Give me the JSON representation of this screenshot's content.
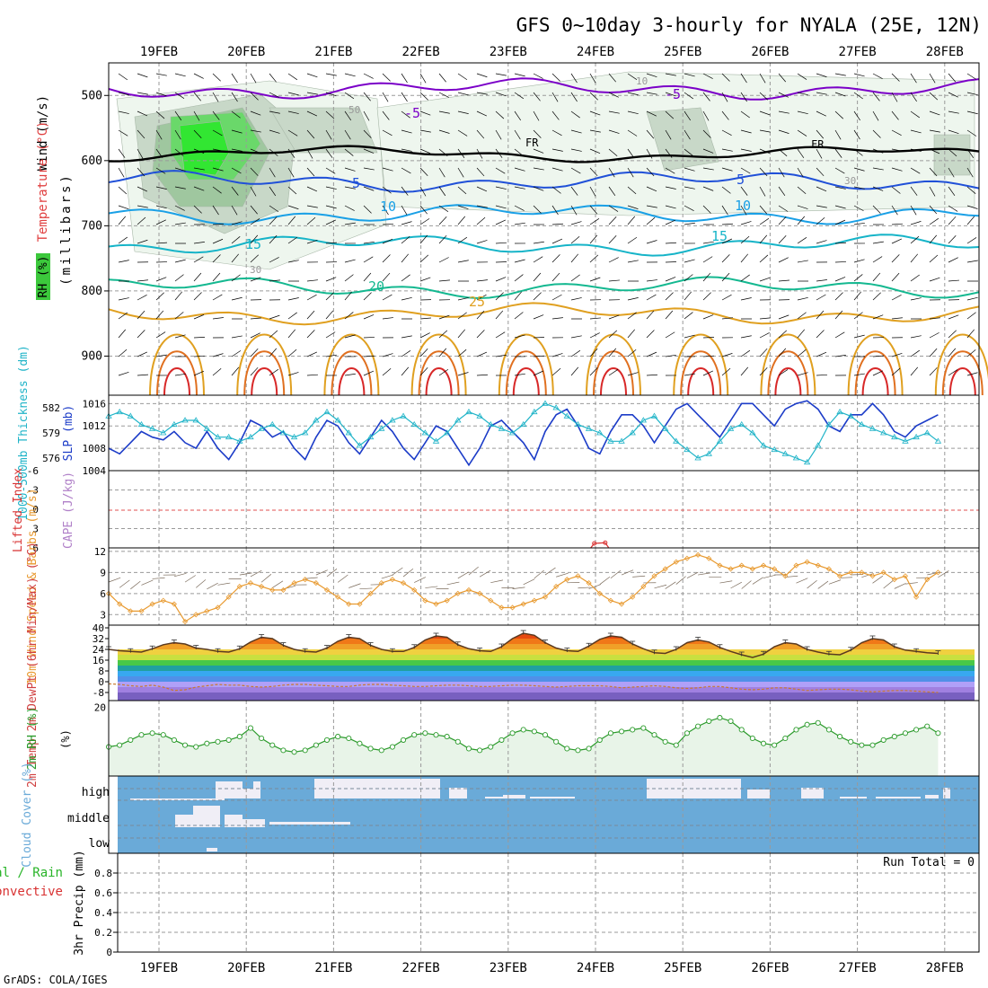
{
  "title": "GFS 0~10day 3-hourly for NYALA (25E, 12N)",
  "credit": "GrADS: COLA/IGES",
  "colors": {
    "wind_barb": "#000000",
    "fr": "#000000",
    "t_neg": "#7b00c8",
    "t5": "#2050d8",
    "t10": "#1aa0e6",
    "t15": "#16b4c8",
    "t20": "#14b890",
    "t25": "#e0a020",
    "t30": "#e07020",
    "t35": "#d82828",
    "rh": "#3cc83c",
    "slp": "#1c3cc8",
    "thickness": "#20b4c8",
    "lifted": "#d83232",
    "cape": "#b080c8",
    "wind10": "#e89a30",
    "rh2m": "#2a9a2a",
    "rh2m_fill": "#e8f4e8",
    "cloud": "#6aaad8",
    "cloud_clear": "#f0eef6",
    "precip": "#28b428"
  },
  "chart_data": [
    {
      "panel": "upper-air",
      "type": "heatmap",
      "title": "",
      "ylabel_parts": [
        "Wind (m/s)",
        "Temperature (°C)",
        "(millibars)"
      ],
      "legend": "RH (%)",
      "x": [
        "19FEB",
        "20FEB",
        "21FEB",
        "22FEB",
        "23FEB",
        "24FEB",
        "25FEB",
        "26FEB",
        "27FEB",
        "28FEB"
      ],
      "ylim": [
        960,
        450
      ],
      "yticks": [
        500,
        600,
        700,
        800,
        900
      ],
      "isotherm_labels": [
        "-5",
        "5",
        "10",
        "15",
        "20",
        "25",
        "FR"
      ],
      "rh_labels": [
        "30",
        "50",
        "10"
      ],
      "isotherms": [
        {
          "label": "-5",
          "pressure_mb": 490
        },
        {
          "label": "FR",
          "pressure_mb": 590
        },
        {
          "label": "5",
          "pressure_mb": 632
        },
        {
          "label": "10",
          "pressure_mb": 682
        },
        {
          "label": "15",
          "pressure_mb": 730
        },
        {
          "label": "20",
          "pressure_mb": 795
        },
        {
          "label": "25",
          "pressure_mb": 835
        }
      ]
    },
    {
      "panel": "slp-thickness",
      "type": "line",
      "ylabel_left": "1000-500mb Thickness (dm)",
      "ylabel_right": "SLP (mb)",
      "yticks_left": [
        576,
        579,
        582
      ],
      "yticks_right": [
        1004,
        1008,
        1012,
        1016
      ],
      "ylim_right": [
        1004,
        1017.5
      ],
      "ylim_left": [
        574.5,
        583.5
      ],
      "series": [
        {
          "name": "SLP",
          "values": [
            1008.0,
            1007.0,
            1009.0,
            1011.0,
            1010.0,
            1009.5,
            1011.0,
            1009.0,
            1008.0,
            1011.0,
            1008.0,
            1006.0,
            1009.0,
            1013.0,
            1012.0,
            1010.0,
            1011.0,
            1008.0,
            1006.0,
            1010.0,
            1013.0,
            1012.0,
            1009.0,
            1007.0,
            1010.0,
            1013.0,
            1011.0,
            1008.0,
            1006.0,
            1009.0,
            1012.0,
            1011.0,
            1008.0,
            1005.0,
            1008.0,
            1012.0,
            1013.0,
            1011.0,
            1009.0,
            1006.0,
            1011.0,
            1014.0,
            1015.0,
            1012.0,
            1008.0,
            1007.0,
            1011.0,
            1014.0,
            1014.0,
            1012.0,
            1009.0,
            1012.0,
            1015.0,
            1016.0,
            1014.0,
            1012.0,
            1010.0,
            1013.0,
            1016.0,
            1016.0,
            1014.0,
            1012.0,
            1015.0,
            1016.0,
            1016.5,
            1015.0,
            1012.0,
            1011.0,
            1014.0,
            1014.0,
            1016.0,
            1014.0,
            1011.0,
            1010.0,
            1012.0,
            1013.0,
            1014.0
          ]
        },
        {
          "name": "Thickness",
          "values": [
            581.0,
            581.5,
            581.0,
            580.0,
            579.5,
            579.0,
            580.0,
            580.5,
            580.5,
            579.5,
            578.5,
            578.5,
            578.0,
            578.5,
            579.5,
            580.0,
            579.0,
            578.5,
            579.0,
            580.5,
            581.5,
            580.5,
            579.0,
            577.5,
            578.5,
            579.5,
            580.5,
            581.0,
            580.0,
            579.0,
            578.0,
            579.0,
            580.5,
            581.5,
            581.0,
            580.0,
            579.5,
            579.0,
            580.0,
            581.5,
            582.5,
            582.0,
            581.0,
            580.0,
            579.5,
            579.0,
            578.0,
            578.0,
            579.0,
            580.5,
            581.0,
            579.5,
            578.0,
            577.0,
            576.0,
            576.5,
            578.0,
            579.5,
            580.0,
            579.0,
            577.5,
            577.0,
            576.5,
            576.0,
            575.5,
            577.5,
            580.0,
            581.5,
            581.0,
            580.0,
            579.5,
            579.0,
            578.5,
            578.0,
            578.5,
            579.0,
            578.0
          ]
        }
      ]
    },
    {
      "panel": "lifted-cape",
      "type": "line",
      "ylabel_left": "Lifted Index",
      "ylabel_right": "CAPE (J/kg)",
      "yticks": [
        "-6",
        "-3",
        "0",
        "3",
        "6"
      ],
      "ylim": [
        -6,
        6
      ],
      "series": [
        {
          "name": "CAPE",
          "values": [
            {
              "x": 44.5,
              "y": 5.3
            },
            {
              "x": 45.5,
              "y": 5.2
            }
          ]
        }
      ]
    },
    {
      "panel": "wind10m",
      "type": "line",
      "ylabel": "10m Wind Speed & Barbs (m/s)",
      "yticks": [
        3,
        6,
        9,
        12
      ],
      "ylim": [
        1.5,
        12.5
      ],
      "series": [
        {
          "name": "10m Wind Speed",
          "values": [
            6.0,
            4.5,
            3.5,
            3.5,
            4.5,
            5.0,
            4.5,
            2.0,
            3.0,
            3.5,
            4.0,
            5.5,
            7.0,
            7.5,
            7.0,
            6.5,
            6.5,
            7.5,
            8.0,
            7.5,
            6.5,
            5.5,
            4.5,
            4.5,
            6.0,
            7.5,
            8.0,
            7.5,
            6.5,
            5.0,
            4.5,
            5.0,
            6.0,
            6.5,
            6.0,
            5.0,
            4.0,
            4.0,
            4.5,
            5.0,
            5.5,
            7.0,
            8.0,
            8.5,
            7.5,
            6.0,
            5.0,
            4.5,
            5.5,
            7.0,
            8.5,
            9.5,
            10.5,
            11.0,
            11.5,
            11.0,
            10.0,
            9.5,
            10.0,
            9.5,
            10.0,
            9.5,
            8.5,
            10.0,
            10.5,
            10.0,
            9.5,
            8.5,
            9.0,
            9.0,
            8.5,
            9.0,
            8.0,
            8.5,
            5.5,
            8.0,
            9.0
          ]
        }
      ]
    },
    {
      "panel": "temp2m",
      "type": "area",
      "ylabel": "2m Temp 2m DewPt (6hr Min/Max) (°C)",
      "yticks": [
        -8,
        0,
        8,
        16,
        24,
        32,
        40
      ],
      "ylim": [
        -14,
        42
      ],
      "series": [
        {
          "name": "2m Temp",
          "values": [
            24.0,
            23.0,
            22.5,
            22.0,
            24.5,
            27.5,
            29.0,
            28.0,
            25.0,
            24.0,
            22.5,
            22.0,
            24.5,
            29.5,
            33.0,
            32.0,
            27.0,
            24.0,
            22.5,
            22.0,
            25.0,
            30.0,
            33.0,
            32.0,
            27.0,
            24.0,
            22.5,
            22.5,
            25.5,
            31.0,
            34.0,
            33.0,
            27.5,
            24.5,
            23.0,
            22.5,
            26.0,
            32.0,
            36.0,
            34.5,
            29.0,
            25.0,
            23.0,
            22.5,
            26.5,
            31.5,
            34.0,
            33.0,
            28.0,
            24.5,
            21.5,
            21.0,
            24.0,
            29.0,
            31.0,
            29.5,
            25.5,
            22.5,
            20.0,
            18.0,
            20.5,
            26.0,
            29.0,
            28.0,
            24.0,
            22.0,
            20.5,
            20.0,
            23.5,
            29.0,
            32.0,
            31.0,
            26.0,
            23.5,
            22.5,
            21.5,
            21.0
          ]
        },
        {
          "name": "2m DewPt",
          "values": [
            -1.5,
            -2.0,
            -3.0,
            -3.5,
            -2.5,
            -4.0,
            -6.5,
            -6.0,
            -4.0,
            -3.0,
            -2.0,
            -2.5,
            -2.5,
            -3.5,
            -4.0,
            -3.5,
            -2.5,
            -2.0,
            -2.0,
            -2.5,
            -3.0,
            -3.5,
            -3.5,
            -2.5,
            -2.0,
            -2.0,
            -2.5,
            -3.0,
            -3.5,
            -3.5,
            -3.0,
            -2.5,
            -2.5,
            -3.0,
            -3.5,
            -3.5,
            -3.0,
            -2.5,
            -2.5,
            -3.0,
            -3.5,
            -4.0,
            -3.5,
            -3.0,
            -3.0,
            -3.0,
            -3.5,
            -4.5,
            -4.0,
            -3.5,
            -3.0,
            -3.5,
            -4.5,
            -5.0,
            -4.5,
            -3.5,
            -3.5,
            -4.5,
            -5.5,
            -6.0,
            -5.5,
            -4.5,
            -4.5,
            -5.5,
            -6.5,
            -6.0,
            -5.5,
            -5.5,
            -6.0,
            -7.0,
            -7.5,
            -7.0,
            -6.5,
            -6.5,
            -7.0,
            -7.5,
            -8.0
          ]
        }
      ]
    },
    {
      "panel": "rh2m",
      "type": "line",
      "ylabel": "2m RH (%)",
      "yticks": [
        20
      ],
      "ylim": [
        0,
        22
      ],
      "series": [
        {
          "name": "2m RH",
          "values": [
            8.5,
            9.0,
            10.5,
            12.0,
            12.5,
            12.0,
            10.5,
            9.0,
            8.5,
            9.5,
            10.0,
            10.5,
            11.5,
            14.0,
            11.0,
            9.0,
            7.5,
            7.0,
            7.5,
            9.0,
            10.5,
            11.5,
            11.0,
            9.5,
            8.0,
            7.5,
            8.5,
            10.5,
            12.0,
            12.5,
            12.0,
            11.5,
            10.0,
            8.0,
            7.5,
            8.5,
            10.5,
            12.5,
            13.5,
            13.0,
            12.0,
            10.0,
            8.0,
            7.5,
            8.0,
            10.5,
            12.5,
            13.0,
            13.5,
            14.0,
            12.0,
            10.0,
            9.0,
            12.5,
            14.5,
            16.0,
            17.0,
            16.0,
            13.5,
            11.0,
            9.5,
            9.0,
            11.0,
            13.5,
            15.0,
            15.5,
            13.5,
            11.5,
            10.0,
            9.0,
            9.0,
            10.5,
            11.5,
            12.5,
            13.5,
            14.5,
            12.5
          ]
        }
      ]
    },
    {
      "panel": "cloud",
      "type": "heatmap",
      "ylabel": "Cloud Cover (%)",
      "layers": [
        "high",
        "middle",
        "low"
      ]
    },
    {
      "panel": "precip",
      "type": "bar",
      "ylabel": "3hr Precip (mm)",
      "legend": [
        "Total",
        "Rain",
        "Convective"
      ],
      "legend_text": [
        "tal / Rain",
        "Convective"
      ],
      "annotation": "Run Total = 0",
      "yticks": [
        "0",
        "0.2",
        "0.4",
        "0.6",
        "0.8"
      ],
      "ylim": [
        0,
        1
      ],
      "values": []
    }
  ]
}
